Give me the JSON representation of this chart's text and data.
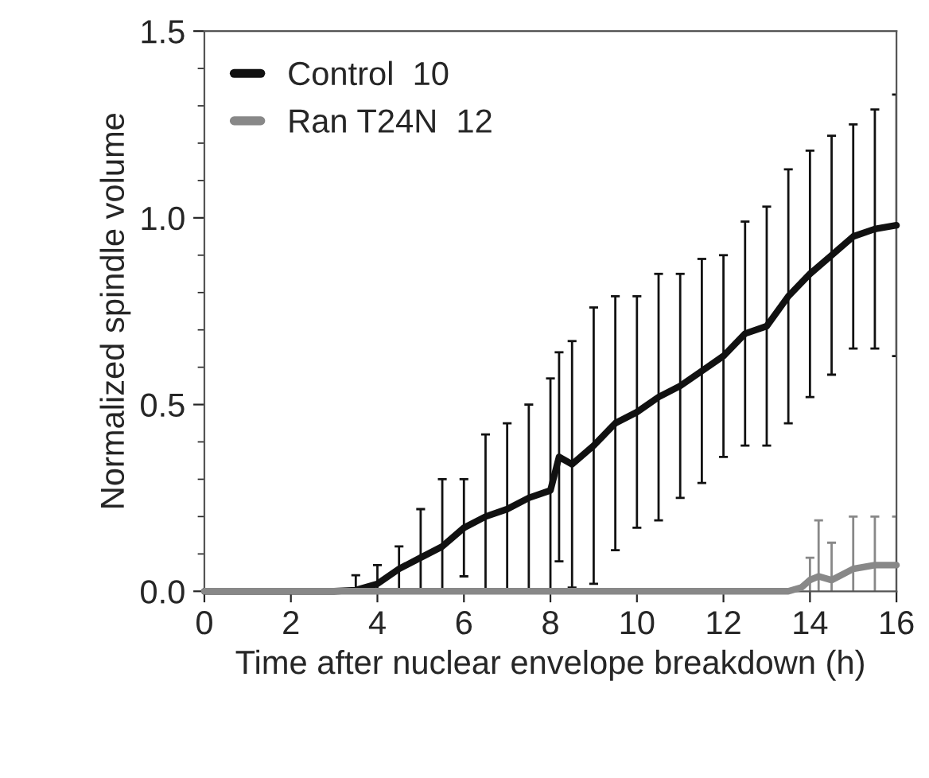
{
  "chart_data": {
    "type": "line",
    "xlabel": "Time after nuclear envelope breakdown (h)",
    "ylabel": "Normalized spindle volume",
    "xlim": [
      0,
      16
    ],
    "ylim": [
      0,
      1.5
    ],
    "xticks": [
      0,
      2,
      4,
      6,
      8,
      10,
      12,
      14,
      16
    ],
    "yticks": [
      {
        "value": 0,
        "label": "0.0"
      },
      {
        "value": 0.5,
        "label": "0.5"
      },
      {
        "value": 1,
        "label": "1.0"
      },
      {
        "value": 1.5,
        "label": "1.5"
      }
    ],
    "legend": "top left",
    "marker": "none",
    "line_style": "solid",
    "grid": false,
    "series": [
      {
        "name": "Control  10",
        "color": "#111111",
        "x": [
          0,
          3,
          3.5,
          4,
          4.5,
          5,
          5.5,
          6,
          6.5,
          7,
          7.5,
          8,
          8.2,
          8.5,
          9,
          9.5,
          10,
          10.5,
          11,
          11.5,
          12,
          12.5,
          13,
          13.5,
          14,
          14.5,
          15,
          15.5,
          16
        ],
        "values": [
          0,
          0,
          0.003,
          0.02,
          0.06,
          0.09,
          0.12,
          0.17,
          0.2,
          0.22,
          0.25,
          0.27,
          0.36,
          0.34,
          0.39,
          0.45,
          0.48,
          0.52,
          0.55,
          0.59,
          0.63,
          0.69,
          0.71,
          0.79,
          0.85,
          0.9,
          0.95,
          0.97,
          0.98
        ],
        "errors": [
          null,
          null,
          0.04,
          0.05,
          0.06,
          0.13,
          0.18,
          0.13,
          0.22,
          0.23,
          0.25,
          0.3,
          0.28,
          0.33,
          0.37,
          0.34,
          0.31,
          0.33,
          0.3,
          0.3,
          0.27,
          0.3,
          0.32,
          0.34,
          0.33,
          0.32,
          0.3,
          0.32,
          0.35
        ]
      },
      {
        "name": "Ran T24N  12",
        "color": "#888888",
        "x": [
          0,
          13.5,
          13.8,
          14,
          14.2,
          14.5,
          15,
          15.5,
          16
        ],
        "values": [
          0,
          0,
          0.01,
          0.03,
          0.04,
          0.03,
          0.06,
          0.07,
          0.07
        ],
        "errors": [
          null,
          null,
          null,
          0.06,
          0.15,
          0.1,
          0.14,
          0.13,
          0.13
        ]
      }
    ]
  }
}
